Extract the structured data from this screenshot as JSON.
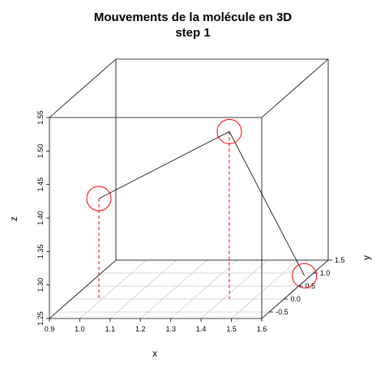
{
  "chart_data": {
    "type": "scatter3d",
    "title": "Mouvements de la molécule en 3D",
    "subtitle": "step 1",
    "xlabel": "x",
    "ylabel": "y",
    "zlabel": "z",
    "xlim": [
      0.9,
      1.6
    ],
    "ylim": [
      -0.75,
      1.5
    ],
    "zlim": [
      1.25,
      1.55
    ],
    "x_ticks": [
      "0.9",
      "1.0",
      "1.1",
      "1.2",
      "1.3",
      "1.4",
      "1.5",
      "1.6"
    ],
    "y_ticks": [
      "-0.5",
      "0.0",
      "0.5",
      "1.0",
      "1.5"
    ],
    "z_ticks": [
      "1.25",
      "1.30",
      "1.35",
      "1.40",
      "1.45",
      "1.50",
      "1.55"
    ],
    "points": [
      {
        "x": 0.99,
        "y": 0.0,
        "z": 1.4
      },
      {
        "x": 1.42,
        "y": 0.0,
        "z": 1.5
      },
      {
        "x": 1.58,
        "y": 0.9,
        "z": 1.25
      }
    ],
    "grid": true,
    "point_color": "#ff0000",
    "line_color": "#000000",
    "drop_line_color": "#ff0000"
  }
}
